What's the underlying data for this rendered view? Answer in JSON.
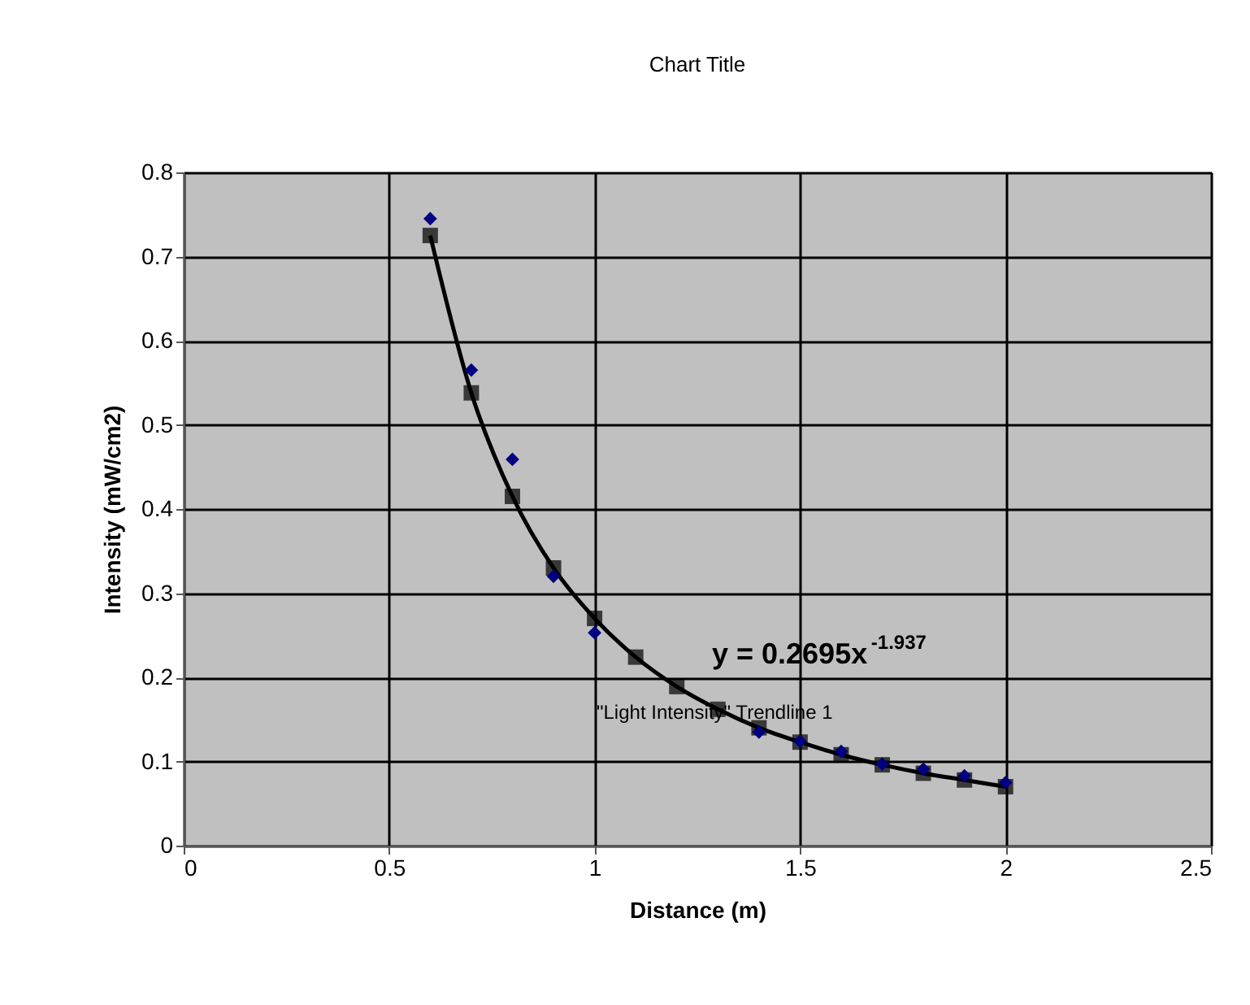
{
  "chart_data": {
    "type": "scatter",
    "title": "Chart Title",
    "xlabel": "Distance (m)",
    "ylabel": "Intensity (mW/cm2)",
    "xlim": [
      0,
      2.5
    ],
    "xticks": [
      0,
      0.5,
      1,
      1.5,
      2,
      2.5
    ],
    "ylim": [
      0,
      0.8
    ],
    "yticks": [
      0,
      0.1,
      0.2,
      0.3,
      0.4,
      0.5,
      0.6,
      0.7,
      0.8
    ],
    "grid": true,
    "series": [
      {
        "type": "scatter",
        "marker": "diamond",
        "color": "#000080",
        "x": [
          0.6,
          0.7,
          0.8,
          0.9,
          1.0,
          1.1,
          1.2,
          1.3,
          1.4,
          1.5,
          1.6,
          1.7,
          1.8,
          1.9,
          2.0
        ],
        "values": [
          0.745,
          0.565,
          0.459,
          0.32,
          0.253,
          null,
          null,
          null,
          0.135,
          0.124,
          0.112,
          0.097,
          0.091,
          0.083,
          0.075
        ]
      },
      {
        "type": "line",
        "marker": "square",
        "line_style": "solid",
        "color": "#000000",
        "x": [
          0.6,
          0.7,
          0.8,
          0.9,
          1.0,
          1.1,
          1.2,
          1.3,
          1.4,
          1.5,
          1.6,
          1.7,
          1.8,
          1.9,
          2.0
        ],
        "values": [
          0.725,
          0.538,
          0.415,
          0.33,
          0.27,
          0.224,
          0.189,
          0.162,
          0.14,
          0.123,
          0.108,
          0.096,
          0.086,
          0.078,
          0.07
        ]
      }
    ],
    "annotations": [
      "y = 0.2695x$^{-1.937}$",
      "\"Light Intensity\" Trendline 1"
    ]
  }
}
